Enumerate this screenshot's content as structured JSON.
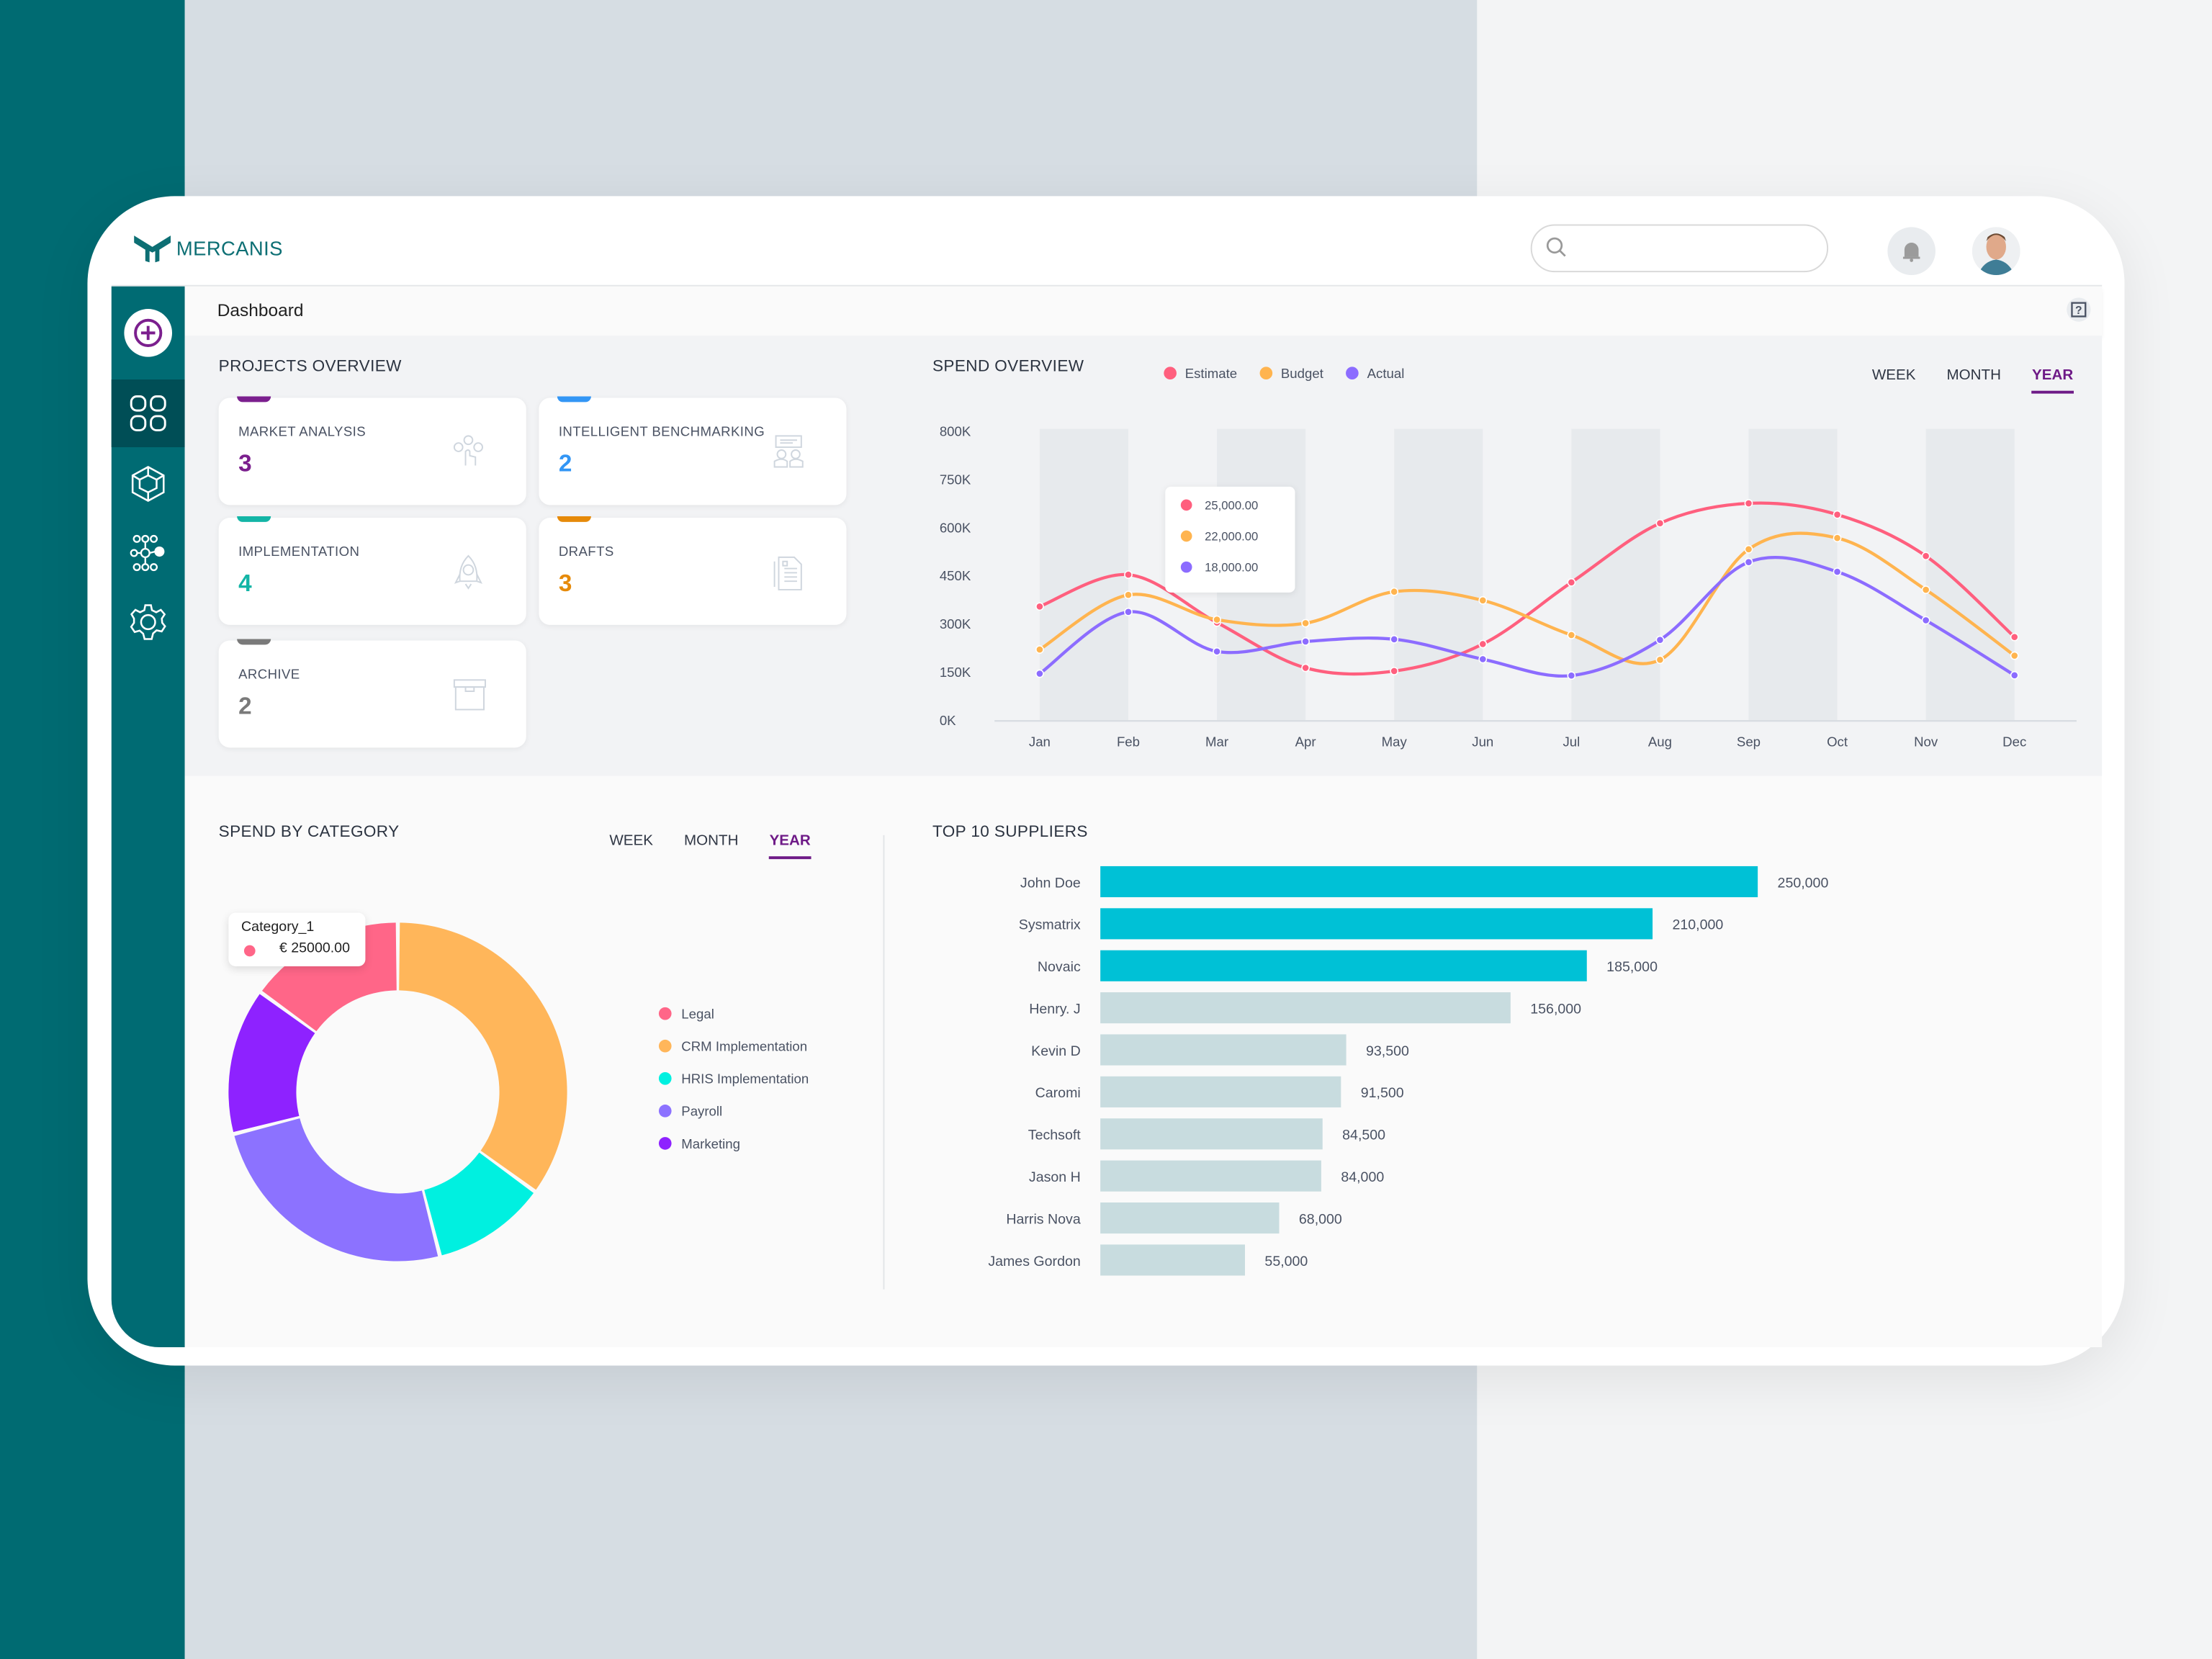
{
  "app": {
    "brand": "MERCANIS"
  },
  "header": {
    "search_placeholder": "",
    "search_value": "",
    "notifications_icon": "bell-icon",
    "avatar_icon": "user-avatar"
  },
  "sidebar": {
    "items": [
      {
        "icon": "plus-circle-icon",
        "label": "Create"
      },
      {
        "icon": "grid-icon",
        "label": "Dashboard",
        "active": true
      },
      {
        "icon": "cube-icon",
        "label": "Products"
      },
      {
        "icon": "network-icon",
        "label": "Network"
      },
      {
        "icon": "gear-icon",
        "label": "Settings"
      }
    ]
  },
  "breadcrumb": {
    "title": "Dashboard",
    "help_icon": "help-icon"
  },
  "projects": {
    "title": "PROJECTS OVERVIEW",
    "cards": [
      {
        "label": "MARKET ANALYSIS",
        "count": "3",
        "color": "#7b1f8e",
        "icon": "people-touch-icon"
      },
      {
        "label": "INTELLIGENT BENCHMARKING",
        "count": "2",
        "color": "#3396f5",
        "icon": "meeting-icon"
      },
      {
        "label": "IMPLEMENTATION",
        "count": "4",
        "color": "#13b5a6",
        "icon": "rocket-icon"
      },
      {
        "label": "DRAFTS",
        "count": "3",
        "color": "#e68a0a",
        "icon": "document-icon"
      },
      {
        "label": "ARCHIVE",
        "count": "2",
        "color": "#7a7a7a",
        "icon": "archive-box-icon"
      }
    ]
  },
  "spend_overview": {
    "title": "SPEND OVERVIEW",
    "tabs": [
      "WEEK",
      "MONTH",
      "YEAR"
    ],
    "selected_tab": "YEAR",
    "tooltip": [
      "25,000.00",
      "22,000.00",
      "18,000.00"
    ]
  },
  "spend_by_category": {
    "title": "SPEND BY CATEGORY",
    "tabs": [
      "WEEK",
      "MONTH",
      "YEAR"
    ],
    "selected_tab": "YEAR",
    "tooltip": {
      "title": "Category_1",
      "value": "€ 25000.00"
    }
  },
  "suppliers": {
    "title": "TOP 10 SUPPLIERS"
  },
  "chart_data": [
    {
      "type": "line",
      "title": "SPEND OVERVIEW",
      "categories": [
        "Jan",
        "Feb",
        "Mar",
        "Apr",
        "May",
        "Jun",
        "Jul",
        "Aug",
        "Sep",
        "Oct",
        "Nov",
        "Dec"
      ],
      "y_ticks": [
        "0K",
        "150K",
        "300K",
        "450K",
        "600K",
        "750K",
        "800K"
      ],
      "y_tick_values": [
        0,
        150000,
        300000,
        450000,
        600000,
        750000,
        800000
      ],
      "legend_position": "top",
      "series": [
        {
          "name": "Estimate",
          "color": "#ff5f7e",
          "values": [
            356000,
            455000,
            306000,
            165000,
            155000,
            239000,
            431000,
            615000,
            677000,
            642000,
            513000,
            261000
          ]
        },
        {
          "name": "Budget",
          "color": "#ffb44f",
          "values": [
            222000,
            392000,
            315000,
            304000,
            402000,
            375000,
            267000,
            190000,
            534000,
            569000,
            408000,
            203000
          ]
        },
        {
          "name": "Actual",
          "color": "#8c6cff",
          "values": [
            147000,
            339000,
            216000,
            247000,
            254000,
            192000,
            141000,
            252000,
            494000,
            464000,
            313000,
            142000
          ]
        }
      ]
    },
    {
      "type": "pie",
      "donut": true,
      "unit": "percent share (estimated)",
      "categories": [
        "Legal",
        "CRM Implementation",
        "HRIS Implementation",
        "Payroll",
        "Marketing"
      ],
      "values": [
        15,
        35,
        11,
        25,
        14
      ],
      "colors": [
        "#ff6688",
        "#ffb65a",
        "#00f0e0",
        "#8c72ff",
        "#8e22ff"
      ],
      "legend_position": "right"
    },
    {
      "type": "bar",
      "orientation": "horizontal",
      "categories": [
        "John Doe",
        "Sysmatrix",
        "Novaic",
        "Henry. J",
        "Kevin D",
        "Caromi",
        "Techsoft",
        "Jason H",
        "Harris Nova",
        "James Gordon"
      ],
      "values": [
        250000,
        210000,
        185000,
        156000,
        93500,
        91500,
        84500,
        84000,
        68000,
        55000
      ],
      "labels": [
        "250,000",
        "210,000",
        "185,000",
        "156,000",
        "93,500",
        "91,500",
        "84,500",
        "84,000",
        "68,000",
        "55,000"
      ],
      "highlight_color": "#00c1d6",
      "base_color": "#c8dcdf",
      "highlighted_count": 3
    }
  ]
}
